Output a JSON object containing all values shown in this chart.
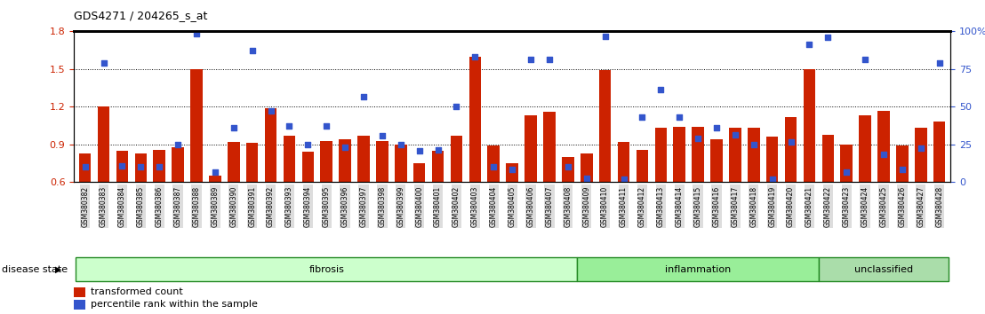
{
  "title": "GDS4271 / 204265_s_at",
  "samples": [
    "GSM380382",
    "GSM380383",
    "GSM380384",
    "GSM380385",
    "GSM380386",
    "GSM380387",
    "GSM380388",
    "GSM380389",
    "GSM380390",
    "GSM380391",
    "GSM380392",
    "GSM380393",
    "GSM380394",
    "GSM380395",
    "GSM380396",
    "GSM380397",
    "GSM380398",
    "GSM380399",
    "GSM380400",
    "GSM380401",
    "GSM380402",
    "GSM380403",
    "GSM380404",
    "GSM380405",
    "GSM380406",
    "GSM380407",
    "GSM380408",
    "GSM380409",
    "GSM380410",
    "GSM380411",
    "GSM380412",
    "GSM380413",
    "GSM380414",
    "GSM380415",
    "GSM380416",
    "GSM380417",
    "GSM380418",
    "GSM380419",
    "GSM380420",
    "GSM380421",
    "GSM380422",
    "GSM380423",
    "GSM380424",
    "GSM380425",
    "GSM380426",
    "GSM380427",
    "GSM380428"
  ],
  "bar_values": [
    0.83,
    1.2,
    0.85,
    0.83,
    0.86,
    0.88,
    1.5,
    0.65,
    0.92,
    0.91,
    1.19,
    0.97,
    0.84,
    0.93,
    0.94,
    0.97,
    0.93,
    0.9,
    0.75,
    0.85,
    0.97,
    1.6,
    0.89,
    0.75,
    1.13,
    1.16,
    0.8,
    0.83,
    1.49,
    0.92,
    0.86,
    1.03,
    1.04,
    1.04,
    0.94,
    1.03,
    1.03,
    0.96,
    1.12,
    1.5,
    0.98,
    0.9,
    1.13,
    1.17,
    0.89,
    1.03,
    1.08
  ],
  "dot_values": [
    0.72,
    1.55,
    0.73,
    0.72,
    0.72,
    0.9,
    1.78,
    0.68,
    1.03,
    1.65,
    1.17,
    1.05,
    0.9,
    1.05,
    0.88,
    1.28,
    0.97,
    0.9,
    0.85,
    0.86,
    1.2,
    1.6,
    0.72,
    0.7,
    1.58,
    1.58,
    0.72,
    0.63,
    1.76,
    0.62,
    1.12,
    1.34,
    1.12,
    0.95,
    1.03,
    0.98,
    0.9,
    0.62,
    0.92,
    1.7,
    1.75,
    0.68,
    1.58,
    0.82,
    0.7,
    0.87,
    1.55
  ],
  "bar_color": "#cc2200",
  "dot_color": "#3355cc",
  "ylim_left": [
    0.6,
    1.8
  ],
  "ylim_right": [
    0,
    100
  ],
  "yticks_left": [
    0.6,
    0.9,
    1.2,
    1.5,
    1.8
  ],
  "yticks_right": [
    0,
    25,
    50,
    75,
    100
  ],
  "groups": [
    {
      "label": "fibrosis",
      "start": 0,
      "end": 27,
      "color": "#ccffcc"
    },
    {
      "label": "inflammation",
      "start": 27,
      "end": 40,
      "color": "#99ee99"
    },
    {
      "label": "unclassified",
      "start": 40,
      "end": 47,
      "color": "#aaddaa"
    }
  ],
  "group_border_color": "#228822",
  "disease_state_label": "disease state",
  "legend_bar_label": "transformed count",
  "legend_dot_label": "percentile rank within the sample",
  "tick_label_bg": "#dddddd"
}
